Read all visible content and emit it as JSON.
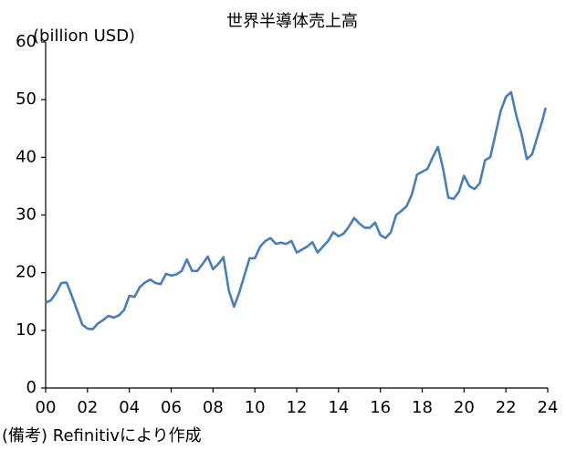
{
  "chart_data": {
    "type": "line",
    "title": "世界半導体売上高",
    "y_label": "(billion USD)",
    "note": "(備考) Refinitivにより作成",
    "x": [
      0,
      0.25,
      0.5,
      0.75,
      1,
      1.25,
      1.5,
      1.75,
      2,
      2.25,
      2.5,
      2.75,
      3,
      3.25,
      3.5,
      3.75,
      4,
      4.25,
      4.5,
      4.75,
      5,
      5.25,
      5.5,
      5.75,
      6,
      6.25,
      6.5,
      6.75,
      7,
      7.25,
      7.5,
      7.75,
      8,
      8.25,
      8.5,
      8.75,
      9,
      9.25,
      9.5,
      9.75,
      10,
      10.25,
      10.5,
      10.75,
      11,
      11.25,
      11.5,
      11.75,
      12,
      12.25,
      12.5,
      12.75,
      13,
      13.25,
      13.5,
      13.75,
      14,
      14.25,
      14.5,
      14.75,
      15,
      15.25,
      15.5,
      15.75,
      16,
      16.25,
      16.5,
      16.75,
      17,
      17.25,
      17.5,
      17.75,
      18,
      18.25,
      18.5,
      18.75,
      19,
      19.25,
      19.5,
      19.75,
      20,
      20.25,
      20.5,
      20.75,
      21,
      21.25,
      21.5,
      21.75,
      22,
      22.25,
      22.5,
      22.75,
      23,
      23.25,
      23.5,
      23.75,
      23.9
    ],
    "series": [
      {
        "name": "世界半導体売上高",
        "color": "#4a7ebb",
        "values": [
          14.8,
          15.2,
          16.5,
          18.2,
          18.3,
          16,
          13.5,
          11,
          10.3,
          10.2,
          11.2,
          11.8,
          12.5,
          12.2,
          12.6,
          13.5,
          16,
          15.8,
          17.5,
          18.3,
          18.8,
          18.2,
          18,
          19.8,
          19.5,
          19.7,
          20.3,
          22.3,
          20.3,
          20.3,
          21.5,
          22.8,
          20.6,
          21.5,
          22.7,
          17,
          14.1,
          16.5,
          19.5,
          22.5,
          22.5,
          24.5,
          25.5,
          26,
          25,
          25.2,
          25,
          25.5,
          23.5,
          24,
          24.5,
          25.3,
          23.5,
          24.5,
          25.5,
          27,
          26.3,
          26.8,
          28,
          29.5,
          28.5,
          27.8,
          27.8,
          28.7,
          26.5,
          26,
          27,
          30,
          30.7,
          31.5,
          33.5,
          37,
          37.5,
          38,
          40,
          41.8,
          38,
          33,
          32.8,
          34,
          36.8,
          35,
          34.5,
          35.5,
          39.5,
          40,
          44,
          48,
          50.5,
          51.3,
          47.2,
          44,
          39.7,
          40.5,
          43.5,
          46.5,
          48.6
        ]
      }
    ],
    "xlim": [
      0,
      24
    ],
    "xticks": [
      {
        "value": 0,
        "label": "00"
      },
      {
        "value": 2,
        "label": "02"
      },
      {
        "value": 4,
        "label": "04"
      },
      {
        "value": 6,
        "label": "06"
      },
      {
        "value": 8,
        "label": "08"
      },
      10,
      12,
      14,
      16,
      18,
      20,
      22,
      24
    ],
    "ylim": [
      0,
      60
    ],
    "yticks": [
      0,
      10,
      20,
      30,
      40,
      50,
      60
    ],
    "grid": false
  }
}
